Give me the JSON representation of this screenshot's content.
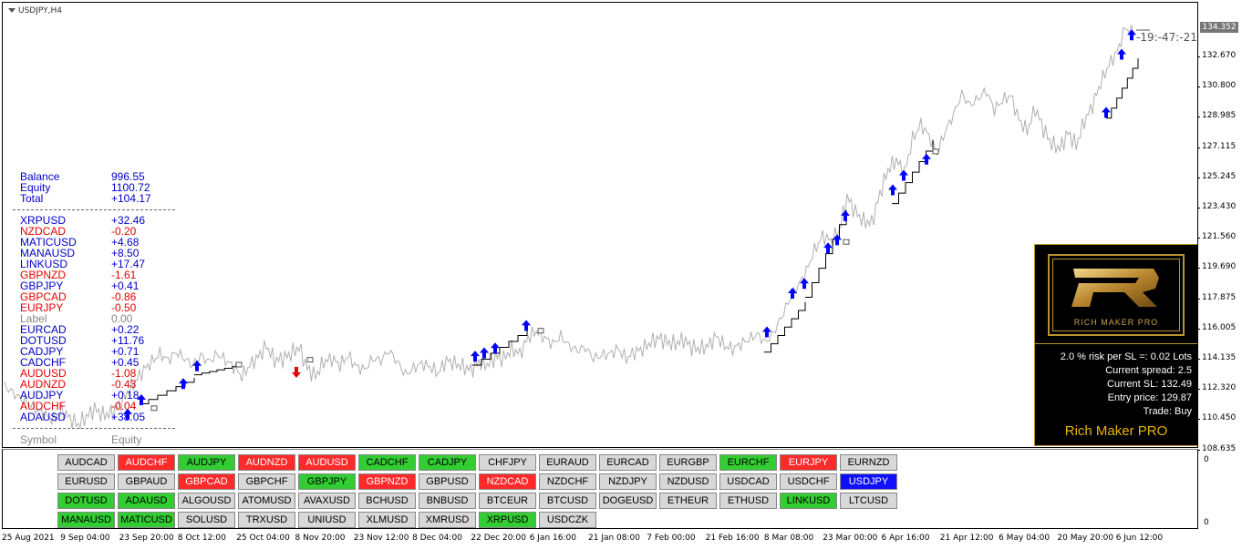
{
  "chart": {
    "title": "USDJPY,H4",
    "countdown": "-19:-47:-21",
    "current_price": "134.352",
    "price_labels": [
      "132.670",
      "130.800",
      "128.985",
      "127.115",
      "125.245",
      "123.430",
      "121.560",
      "119.690",
      "117.875",
      "116.005",
      "114.135",
      "112.320",
      "110.450",
      "108.635"
    ],
    "sub_labels": [
      "0",
      "0"
    ],
    "date_labels": [
      "25 Aug 2021",
      "9 Sep 04:00",
      "23 Sep 20:00",
      "8 Oct 12:00",
      "25 Oct 04:00",
      "8 Nov 20:00",
      "23 Nov 12:00",
      "8 Dec 04:00",
      "22 Dec 20:00",
      "6 Jan 16:00",
      "21 Jan 08:00",
      "7 Feb 00:00",
      "21 Feb 16:00",
      "8 Mar 08:00",
      "23 Mar 00:00",
      "6 Apr 16:00",
      "21 Apr 12:00",
      "6 May 04:00",
      "20 May 20:00",
      "6 Jun 12:00"
    ],
    "line_color": "#b0b0b0",
    "buy_arrow_color": "#0000ff",
    "sell_arrow_color": "#e60000",
    "price_series": [
      112.3,
      111.9,
      111.5,
      111.2,
      110.8,
      110.5,
      110.2,
      110.8,
      110.3,
      109.9,
      110.4,
      110.9,
      110.5,
      110.6,
      111.1,
      111.9,
      112.6,
      113.3,
      113.8,
      114.3,
      113.9,
      114.4,
      114.0,
      113.6,
      114.2,
      113.8,
      114.3,
      113.9,
      113.5,
      112.9,
      113.6,
      114.1,
      114.8,
      113.9,
      114.0,
      114.3,
      114.7,
      113.4,
      112.9,
      113.8,
      114.0,
      113.6,
      114.2,
      113.5,
      113.3,
      114.0,
      113.9,
      114.5,
      113.8,
      113.0,
      113.4,
      113.7,
      113.5,
      113.1,
      113.9,
      113.7,
      113.5,
      113.3,
      113.8,
      113.6,
      114.1,
      114.0,
      114.6,
      114.3,
      115.3,
      115.7,
      115.3,
      114.9,
      115.4,
      114.8,
      114.5,
      114.7,
      114.0,
      114.2,
      114.3,
      114.6,
      114.0,
      114.4,
      114.6,
      115.0,
      115.3,
      115.0,
      114.9,
      115.2,
      114.7,
      114.6,
      114.8,
      115.4,
      114.8,
      114.6,
      114.9,
      115.2,
      115.5,
      115.0,
      115.6,
      116.6,
      117.7,
      118.5,
      119.4,
      120.7,
      121.6,
      121.3,
      121.9,
      124.0,
      123.1,
      122.5,
      122.4,
      124.2,
      125.7,
      126.3,
      125.5,
      127.6,
      128.5,
      127.8,
      126.7,
      128.1,
      129.1,
      130.4,
      129.7,
      130.1,
      130.6,
      129.4,
      130.0,
      130.3,
      128.8,
      128.1,
      129.5,
      128.2,
      127.3,
      127.0,
      128.0,
      127.2,
      128.7,
      129.7,
      131.1,
      132.2,
      133.0,
      134.5,
      134.2
    ]
  },
  "account": {
    "balance_label": "Balance",
    "balance_value": "996.55",
    "equity_label": "Equity",
    "equity_value": "1100.72",
    "total_label": "Total",
    "total_value": "+104.17"
  },
  "positions": [
    {
      "symbol": "XRPUSD",
      "value": "+32.46",
      "color": "blue"
    },
    {
      "symbol": "NZDCAD",
      "value": "-0.20",
      "color": "red"
    },
    {
      "symbol": "MATICUSD",
      "value": "+4.68",
      "color": "blue"
    },
    {
      "symbol": "MANAUSD",
      "value": "+8.50",
      "color": "blue"
    },
    {
      "symbol": "LINKUSD",
      "value": "+17.47",
      "color": "blue"
    },
    {
      "symbol": "GBPNZD",
      "value": "-1.61",
      "color": "red"
    },
    {
      "symbol": "GBPJPY",
      "value": "+0.41",
      "color": "blue"
    },
    {
      "symbol": "GBPCAD",
      "value": "-0.86",
      "color": "red"
    },
    {
      "symbol": "EURJPY",
      "value": "-0.50",
      "color": "red"
    },
    {
      "symbol": "Label",
      "value": "0.00",
      "color": "gray"
    },
    {
      "symbol": "EURCAD",
      "value": "+0.22",
      "color": "blue"
    },
    {
      "symbol": "DOTUSD",
      "value": "+11.76",
      "color": "blue"
    },
    {
      "symbol": "CADJPY",
      "value": "+0.71",
      "color": "blue"
    },
    {
      "symbol": "CADCHF",
      "value": "+0.45",
      "color": "blue"
    },
    {
      "symbol": "AUDUSD",
      "value": "-1.08",
      "color": "red"
    },
    {
      "symbol": "AUDNZD",
      "value": "-0.43",
      "color": "red"
    },
    {
      "symbol": "AUDJPY",
      "value": "+0.18",
      "color": "blue"
    },
    {
      "symbol": "AUDCHF",
      "value": "-0.04",
      "color": "red"
    },
    {
      "symbol": "ADAUSD",
      "value": "+38.05",
      "color": "blue"
    }
  ],
  "table_header": {
    "symbol": "Symbol",
    "equity": "Equity"
  },
  "panel": {
    "logo_text": "RICH MAKER PRO",
    "risk_line": "2.0 % risk per SL =: 0.02 Lots",
    "spread_line": "Current spread: 2.5",
    "sl_line": "Current SL: 132.49",
    "entry_line": "Entry price: 129.87",
    "trade_line": "Trade: Buy",
    "title": "Rich Maker PRO",
    "border_color": "#b8922e",
    "title_color": "#e8b400"
  },
  "symbol_buttons": [
    [
      {
        "label": "AUDCAD",
        "state": "n"
      },
      {
        "label": "AUDCHF",
        "state": "r"
      },
      {
        "label": "AUDJPY",
        "state": "g"
      },
      {
        "label": "AUDNZD",
        "state": "r"
      },
      {
        "label": "AUDUSD",
        "state": "r"
      },
      {
        "label": "CADCHF",
        "state": "g"
      },
      {
        "label": "CADJPY",
        "state": "g"
      },
      {
        "label": "CHFJPY",
        "state": "n"
      },
      {
        "label": "EURAUD",
        "state": "n"
      },
      {
        "label": "EURCAD",
        "state": "n"
      },
      {
        "label": "EURGBP",
        "state": "n"
      },
      {
        "label": "EURCHF",
        "state": "g"
      },
      {
        "label": "EURJPY",
        "state": "r"
      },
      {
        "label": "EURNZD",
        "state": "n"
      }
    ],
    [
      {
        "label": "EURUSD",
        "state": "n"
      },
      {
        "label": "GBPAUD",
        "state": "n"
      },
      {
        "label": "GBPCAD",
        "state": "r"
      },
      {
        "label": "GBPCHF",
        "state": "n"
      },
      {
        "label": "GBPJPY",
        "state": "g"
      },
      {
        "label": "GBPNZD",
        "state": "r"
      },
      {
        "label": "GBPUSD",
        "state": "n"
      },
      {
        "label": "NZDCAD",
        "state": "r"
      },
      {
        "label": "NZDCHF",
        "state": "n"
      },
      {
        "label": "NZDJPY",
        "state": "n"
      },
      {
        "label": "NZDUSD",
        "state": "n"
      },
      {
        "label": "USDCAD",
        "state": "n"
      },
      {
        "label": "USDCHF",
        "state": "n"
      },
      {
        "label": "USDJPY",
        "state": "b"
      }
    ],
    [
      {
        "label": "DOTUSD",
        "state": "g"
      },
      {
        "label": "ADAUSD",
        "state": "g"
      },
      {
        "label": "ALGOUSD",
        "state": "n"
      },
      {
        "label": "ATOMUSD",
        "state": "n"
      },
      {
        "label": "AVAXUSD",
        "state": "n"
      },
      {
        "label": "BCHUSD",
        "state": "n"
      },
      {
        "label": "BNBUSD",
        "state": "n"
      },
      {
        "label": "BTCEUR",
        "state": "n"
      },
      {
        "label": "BTCUSD",
        "state": "n"
      },
      {
        "label": "DOGEUSD",
        "state": "n"
      },
      {
        "label": "ETHEUR",
        "state": "n"
      },
      {
        "label": "ETHUSD",
        "state": "n"
      },
      {
        "label": "LINKUSD",
        "state": "g"
      },
      {
        "label": "LTCUSD",
        "state": "n"
      }
    ],
    [
      {
        "label": "MANAUSD",
        "state": "g"
      },
      {
        "label": "MATICUSD",
        "state": "g"
      },
      {
        "label": "SOLUSD",
        "state": "n"
      },
      {
        "label": "TRXUSD",
        "state": "n"
      },
      {
        "label": "UNIUSD",
        "state": "n"
      },
      {
        "label": "XLMUSD",
        "state": "n"
      },
      {
        "label": "XMRUSD",
        "state": "n"
      },
      {
        "label": "XRPUSD",
        "state": "g"
      },
      {
        "label": "USDCZK",
        "state": "n"
      }
    ]
  ]
}
